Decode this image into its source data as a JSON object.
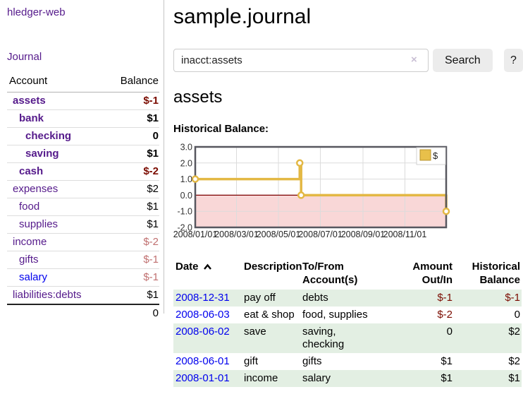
{
  "sidebar": {
    "app_title": "hledger-web",
    "nav": {
      "journal": "Journal"
    },
    "accounts_table": {
      "headers": {
        "account": "Account",
        "balance": "Balance"
      },
      "rows": [
        {
          "name": "assets",
          "level": 1,
          "bold": true,
          "balance": "$-1",
          "balance_style": "neg-strong"
        },
        {
          "name": "bank",
          "level": 2,
          "bold": true,
          "balance": "$1",
          "balance_style": "pos"
        },
        {
          "name": "checking",
          "level": 3,
          "bold": true,
          "balance": "0",
          "balance_style": "pos"
        },
        {
          "name": "saving",
          "level": 3,
          "bold": true,
          "balance": "$1",
          "balance_style": "pos"
        },
        {
          "name": "cash",
          "level": 2,
          "bold": true,
          "balance": "$-2",
          "balance_style": "neg-strong"
        },
        {
          "name": "expenses",
          "level": 1,
          "bold": false,
          "balance": "$2",
          "balance_style": "pos"
        },
        {
          "name": "food",
          "level": 2,
          "bold": false,
          "balance": "$1",
          "balance_style": "pos"
        },
        {
          "name": "supplies",
          "level": 2,
          "bold": false,
          "balance": "$1",
          "balance_style": "pos"
        },
        {
          "name": "income",
          "level": 1,
          "bold": false,
          "balance": "$-2",
          "balance_style": "neg-soft"
        },
        {
          "name": "gifts",
          "level": 2,
          "bold": false,
          "balance": "$-1",
          "balance_style": "neg-soft"
        },
        {
          "name": "salary",
          "level": 2,
          "bold": false,
          "balance": "$-1",
          "balance_style": "neg-soft",
          "link_color": "blue"
        },
        {
          "name": "liabilities:debts",
          "level": 1,
          "bold": false,
          "balance": "$1",
          "balance_style": "pos"
        }
      ],
      "total": "0"
    }
  },
  "main": {
    "title": "sample.journal",
    "search": {
      "value": "inacct:assets",
      "clear_icon": "×",
      "search_button": "Search",
      "help_button": "?"
    },
    "account_heading": "assets",
    "chart_label": "Historical Balance:"
  },
  "chart_data": {
    "type": "line",
    "title": "Historical Balance",
    "step": true,
    "series": [
      {
        "name": "$",
        "points": [
          [
            "2008/01/01",
            1.0
          ],
          [
            "2008/06/01",
            2.0
          ],
          [
            "2008/06/03",
            0.0
          ],
          [
            "2008/12/31",
            -1.0
          ]
        ]
      }
    ],
    "x_range": [
      "2008/01/01",
      "2008/12/31"
    ],
    "ylim": [
      -2.0,
      3.0
    ],
    "yticks": [
      3.0,
      2.0,
      1.0,
      0.0,
      -1.0,
      -2.0
    ],
    "ytick_labels": [
      "3.0",
      "2.0",
      "1.0",
      "0.0",
      "-1.0",
      "-2.0"
    ],
    "xticks": [
      "2008/01/01",
      "2008/03/01",
      "2008/05/01",
      "2008/07/01",
      "2008/09/01",
      "2008/11/01"
    ],
    "legend": {
      "position": "top-right",
      "entries": [
        "$"
      ]
    },
    "grid": true,
    "colors": {
      "line": "#e3b844",
      "marker_fill": "#ffffff",
      "negative_fill": "#f9d7d7",
      "zero_line": "#7d0101",
      "grid": "#dcdcdc",
      "border": "#57575f",
      "legend_square": "#e8c04a",
      "legend_square_border": "#b89530"
    }
  },
  "transactions": {
    "headers": [
      "Date",
      "Description",
      "To/From Account(s)",
      "Amount Out/In",
      "Historical Balance"
    ],
    "sort_icon": "chevron-up",
    "rows": [
      {
        "date": "2008-12-31",
        "description": "pay off",
        "accounts": "debts",
        "amount": "$-1",
        "amount_neg": true,
        "balance": "$-1",
        "balance_neg": true
      },
      {
        "date": "2008-06-03",
        "description": "eat & shop",
        "accounts": "food, supplies",
        "amount": "$-2",
        "amount_neg": true,
        "balance": "0",
        "balance_neg": false
      },
      {
        "date": "2008-06-02",
        "description": "save",
        "accounts": "saving,\nchecking",
        "amount": "0",
        "amount_neg": false,
        "balance": "$2",
        "balance_neg": false
      },
      {
        "date": "2008-06-01",
        "description": "gift",
        "accounts": "gifts",
        "amount": "$1",
        "amount_neg": false,
        "balance": "$2",
        "balance_neg": false
      },
      {
        "date": "2008-01-01",
        "description": "income",
        "accounts": "salary",
        "amount": "$1",
        "amount_neg": false,
        "balance": "$1",
        "balance_neg": false
      }
    ]
  },
  "colors": {
    "link_purple": "#551a8b",
    "link_blue": "#0000ee",
    "negative_strong": "#7b0c01",
    "negative_soft": "#c07070",
    "row_stripe_green": "#e3efe3",
    "button_gray": "#ececec"
  }
}
